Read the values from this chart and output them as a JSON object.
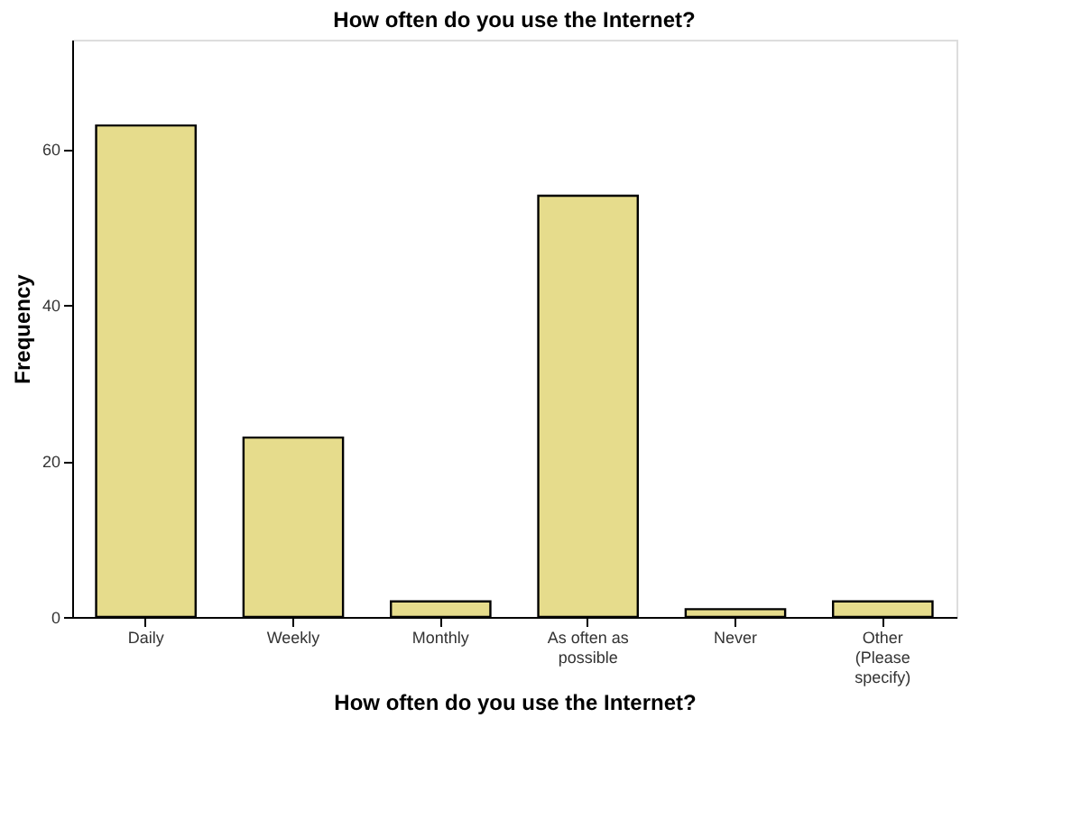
{
  "chart_data": {
    "type": "bar",
    "title": "How often do you use the Internet?",
    "xlabel": "How often do you use the Internet?",
    "ylabel": "Frequency",
    "categories": [
      "Daily",
      "Weekly",
      "Monthly",
      "As often as possible",
      "Never",
      "Other (Please specify)"
    ],
    "values": [
      63,
      23,
      2,
      54,
      1,
      2
    ],
    "color": "#e6dc8c",
    "ylim": [
      0,
      74
    ],
    "yticks": [
      0,
      20,
      40,
      60
    ],
    "grid": false
  }
}
